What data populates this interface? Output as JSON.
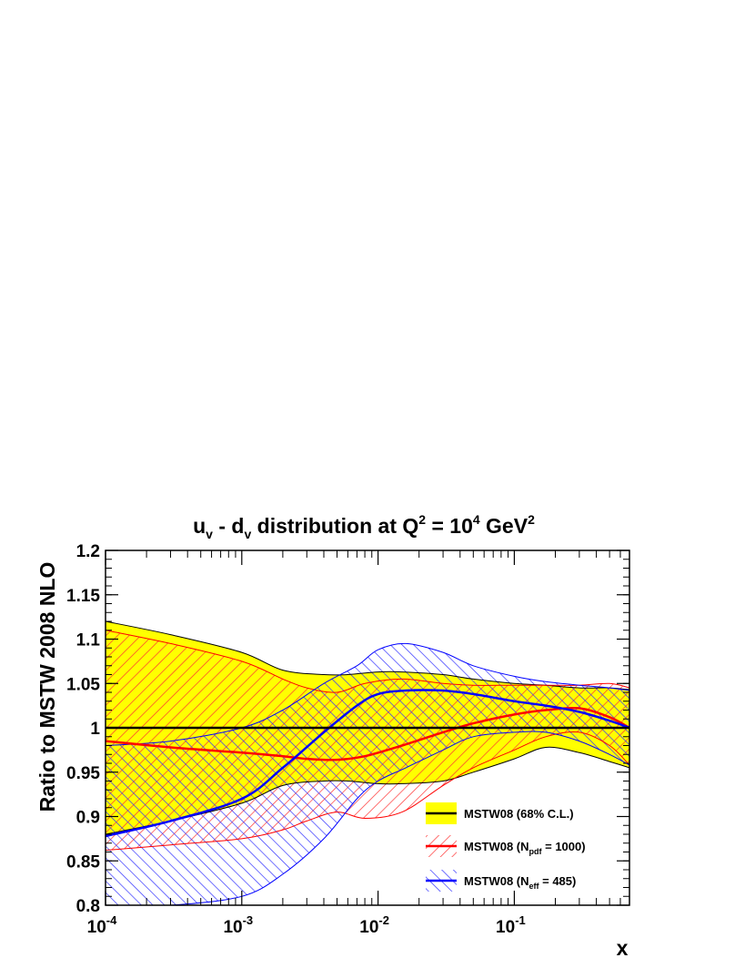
{
  "chart_data": {
    "type": "line",
    "title": {
      "prefix": "u",
      "sub1": "v",
      "mid": " - d",
      "sub2": "v",
      "rest": " distribution at Q",
      "sup1": "2",
      "eq": " = 10",
      "sup2": "4",
      "unit": " GeV",
      "sup3": "2"
    },
    "xlabel": "x",
    "ylabel": "Ratio to MSTW 2008 NLO",
    "xscale": "log",
    "xlim": [
      0.0001,
      0.7
    ],
    "ylim": [
      0.8,
      1.2
    ],
    "xticks": [
      {
        "base": "10",
        "exp": "-4",
        "value": 0.0001
      },
      {
        "base": "10",
        "exp": "-3",
        "value": 0.001
      },
      {
        "base": "10",
        "exp": "-2",
        "value": 0.01
      },
      {
        "base": "10",
        "exp": "-1",
        "value": 0.1
      }
    ],
    "yticks": [
      {
        "value": 0.8,
        "label": "0.8"
      },
      {
        "value": 0.85,
        "label": "0.85"
      },
      {
        "value": 0.9,
        "label": "0.9"
      },
      {
        "value": 0.95,
        "label": "0.95"
      },
      {
        "value": 1.0,
        "label": "1"
      },
      {
        "value": 1.05,
        "label": "1.05"
      },
      {
        "value": 1.1,
        "label": "1.1"
      },
      {
        "value": 1.15,
        "label": "1.15"
      },
      {
        "value": 1.2,
        "label": "1.2"
      }
    ],
    "series": [
      {
        "name": "MSTW08 (68% C.L.)",
        "fill": "#ffff00",
        "line": "#000000",
        "style": "solid",
        "x": [
          0.0001,
          0.0003,
          0.001,
          0.002,
          0.004,
          0.006,
          0.01,
          0.015,
          0.03,
          0.05,
          0.1,
          0.17,
          0.3,
          0.5,
          0.7
        ],
        "upper": [
          1.12,
          1.105,
          1.085,
          1.065,
          1.06,
          1.06,
          1.063,
          1.063,
          1.06,
          1.055,
          1.05,
          1.048,
          1.045,
          1.045,
          1.043
        ],
        "central": [
          1.0,
          1.0,
          1.0,
          1.0,
          1.0,
          1.0,
          1.0,
          1.0,
          1.0,
          1.0,
          1.0,
          1.0,
          1.0,
          1.0,
          1.0
        ],
        "lower": [
          0.88,
          0.895,
          0.915,
          0.935,
          0.94,
          0.94,
          0.937,
          0.937,
          0.94,
          0.95,
          0.965,
          0.978,
          0.972,
          0.962,
          0.955
        ]
      },
      {
        "name": "MSTW08 (N",
        "sub": "pdf",
        "tail": " = 1000)",
        "fill": "#ff3333",
        "line": "#ff0000",
        "style": "hatch-red",
        "x": [
          0.0001,
          0.0003,
          0.001,
          0.002,
          0.003,
          0.005,
          0.008,
          0.015,
          0.03,
          0.05,
          0.1,
          0.17,
          0.3,
          0.5,
          0.7
        ],
        "upper": [
          1.11,
          1.095,
          1.075,
          1.055,
          1.045,
          1.04,
          1.05,
          1.055,
          1.05,
          1.048,
          1.048,
          1.048,
          1.048,
          1.05,
          1.045
        ],
        "central": [
          0.985,
          0.978,
          0.972,
          0.968,
          0.965,
          0.964,
          0.968,
          0.98,
          0.995,
          1.005,
          1.015,
          1.02,
          1.022,
          1.012,
          1.0
        ],
        "lower": [
          0.862,
          0.868,
          0.875,
          0.885,
          0.895,
          0.905,
          0.898,
          0.905,
          0.935,
          0.955,
          0.975,
          0.99,
          0.995,
          0.98,
          0.958
        ]
      },
      {
        "name": "MSTW08 (N",
        "sub": "eff",
        "tail": " = 485)",
        "fill": "#3333ff",
        "line": "#0000ff",
        "style": "hatch-blue",
        "x": [
          0.0001,
          0.0003,
          0.001,
          0.002,
          0.004,
          0.007,
          0.01,
          0.016,
          0.03,
          0.05,
          0.1,
          0.17,
          0.3,
          0.5,
          0.7
        ],
        "upper": [
          0.98,
          0.985,
          1.0,
          1.02,
          1.05,
          1.07,
          1.088,
          1.095,
          1.085,
          1.07,
          1.058,
          1.052,
          1.048,
          1.045,
          1.042
        ],
        "central": [
          0.878,
          0.895,
          0.92,
          0.955,
          0.995,
          1.025,
          1.038,
          1.042,
          1.042,
          1.038,
          1.03,
          1.025,
          1.018,
          1.008,
          1.0
        ],
        "lower": [
          0.8,
          0.8,
          0.81,
          0.835,
          0.875,
          0.92,
          0.94,
          0.955,
          0.975,
          0.99,
          0.995,
          0.995,
          0.985,
          0.97,
          0.958
        ]
      }
    ],
    "legend": {
      "position": "bottom-right"
    }
  }
}
